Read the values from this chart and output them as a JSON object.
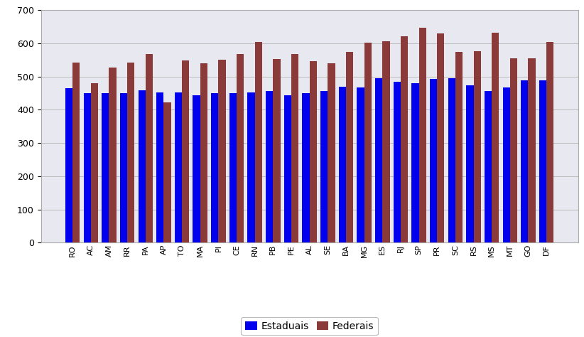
{
  "categories": [
    "RO",
    "AC",
    "AM",
    "RR",
    "PA",
    "AP",
    "TO",
    "MA",
    "PI",
    "CE",
    "RN",
    "PB",
    "PE",
    "AL",
    "SE",
    "BA",
    "MG",
    "ES",
    "RJ",
    "SP",
    "PR",
    "SC",
    "RS",
    "MS",
    "MT",
    "GO",
    "DF"
  ],
  "estaduais": [
    465,
    450,
    449,
    451,
    458,
    452,
    452,
    444,
    451,
    451,
    453,
    457,
    444,
    450,
    457,
    470,
    467,
    494,
    485,
    480,
    492,
    495,
    473,
    456,
    468,
    488,
    488
  ],
  "federais": [
    542,
    480,
    528,
    543,
    567,
    423,
    548,
    540,
    551,
    568,
    605,
    553,
    568,
    547,
    541,
    574,
    602,
    607,
    622,
    648,
    629,
    575,
    577,
    633,
    556,
    556,
    605
  ],
  "bar_color_estaduais": "#0000EE",
  "bar_color_federais": "#8B3A3A",
  "ylim": [
    0,
    700
  ],
  "yticks": [
    0,
    100,
    200,
    300,
    400,
    500,
    600,
    700
  ],
  "legend_estaduais": "Estaduais",
  "legend_federais": "Federais",
  "background_color": "#FFFFFF",
  "plot_background": "#E8E8F0",
  "grid_color": "#BBBBBB"
}
